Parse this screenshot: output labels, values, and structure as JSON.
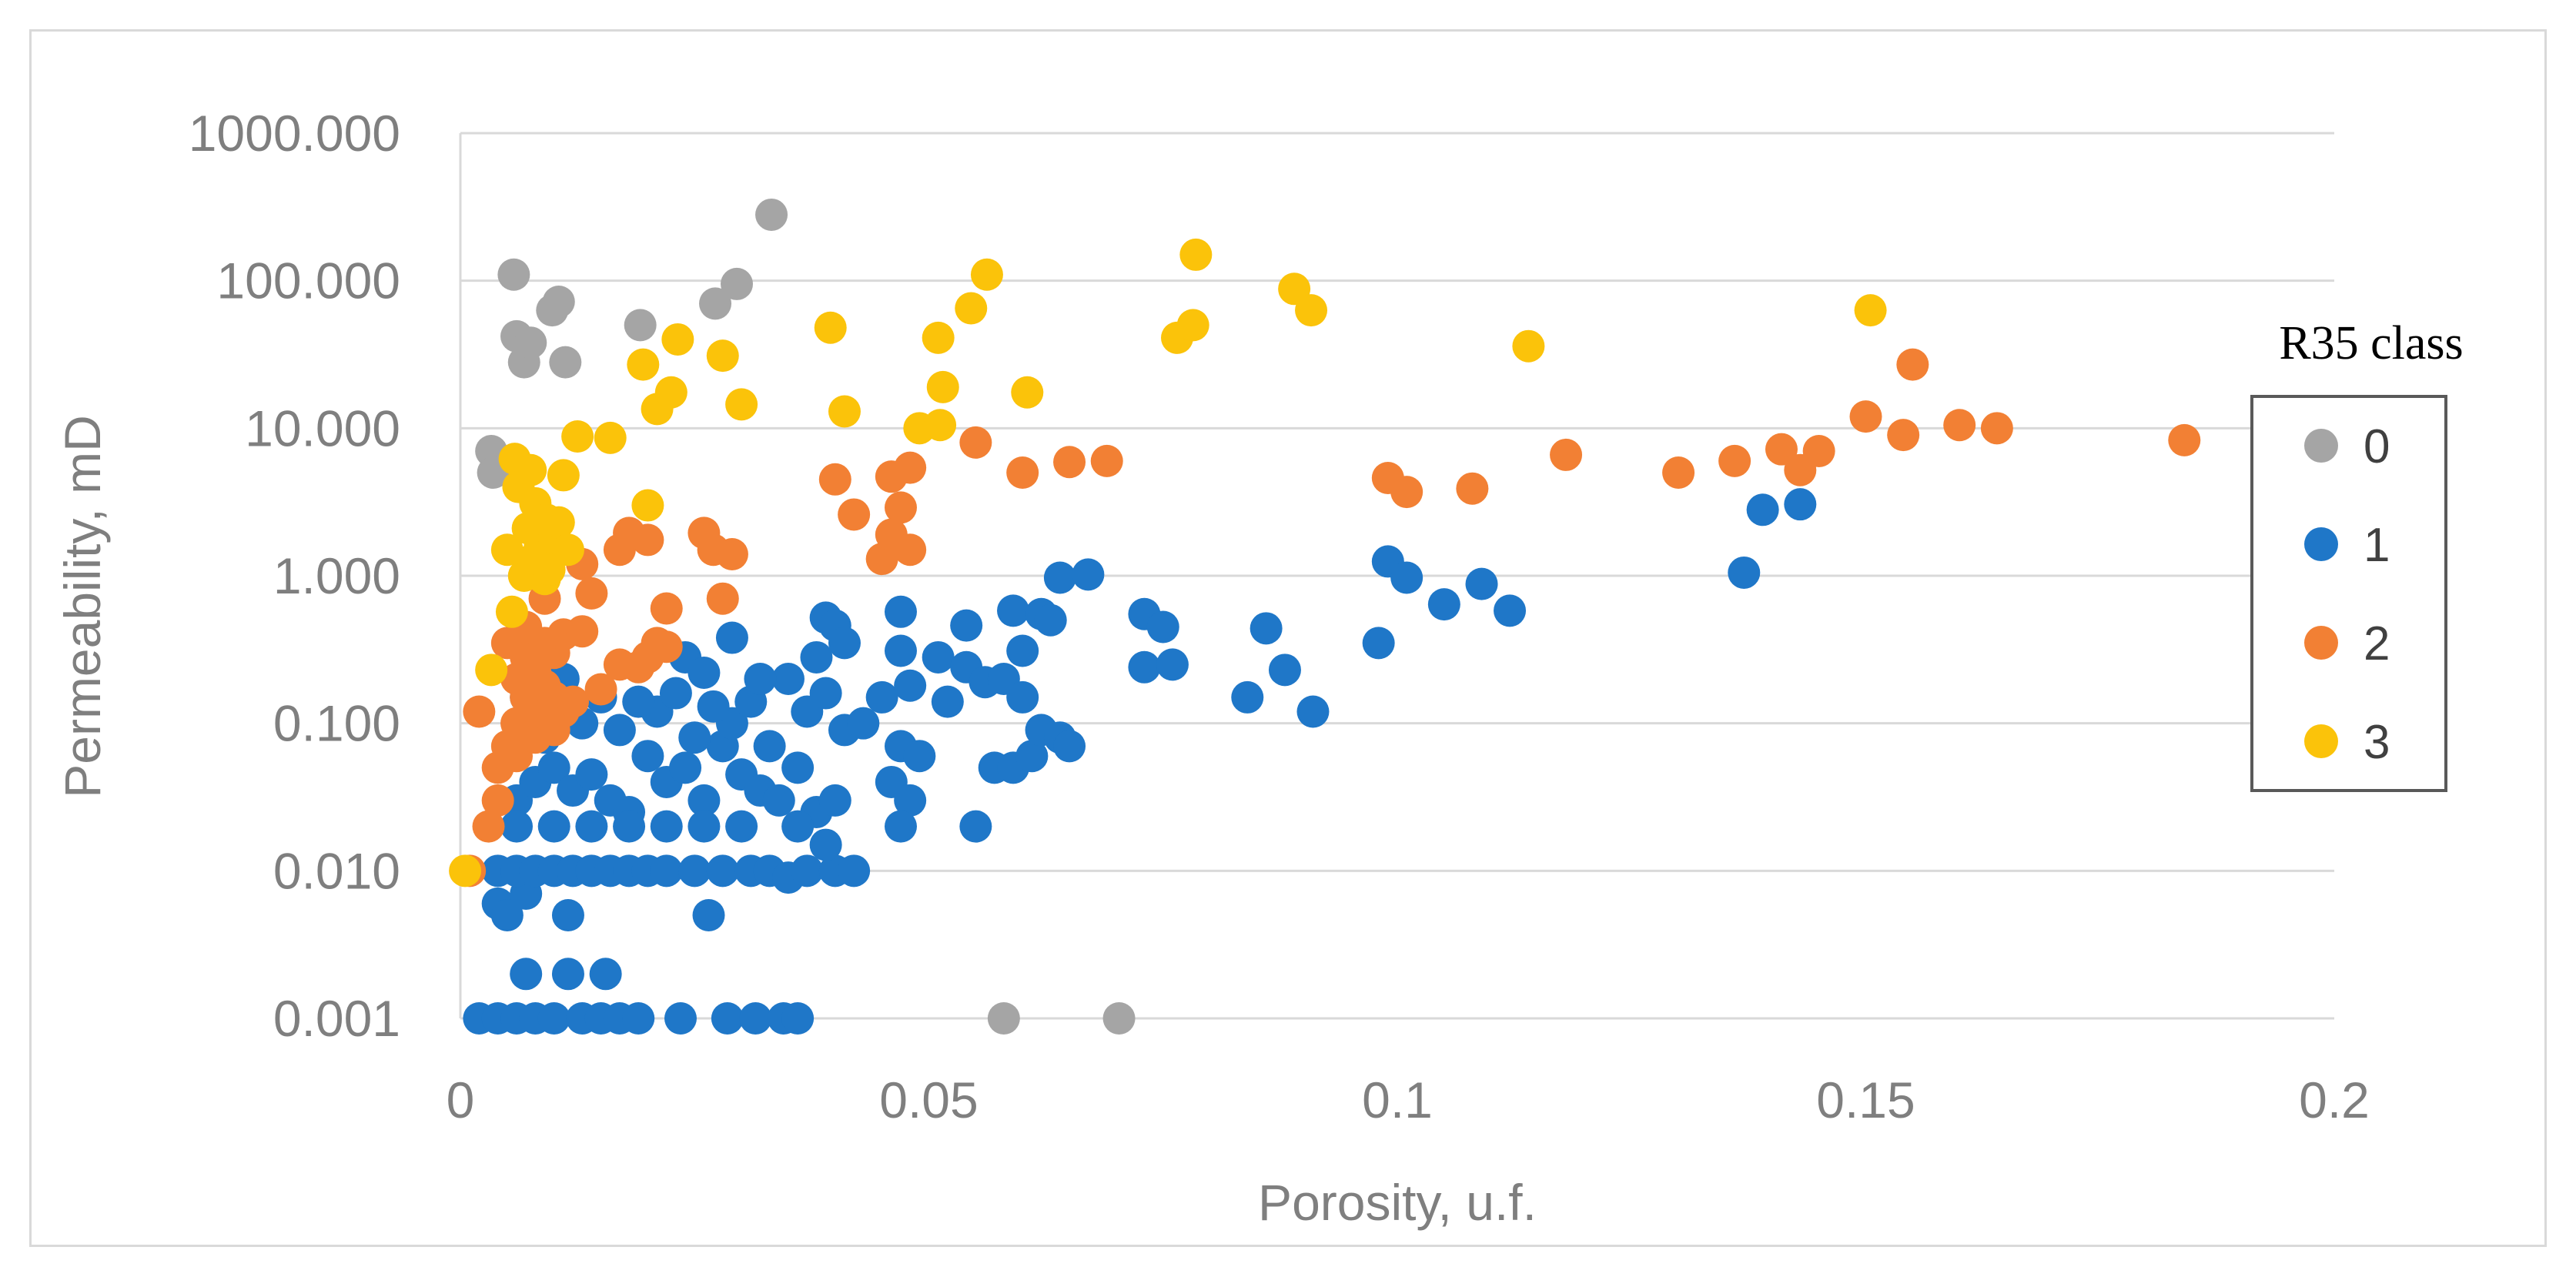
{
  "chart_data": {
    "type": "scatter",
    "title": "",
    "xlabel": "Porosity, u.f.",
    "ylabel": "Permeability, mD",
    "xlim": [
      0,
      0.2
    ],
    "ylim": [
      0.001,
      1000
    ],
    "yscale": "log",
    "x_ticks": [
      "0",
      "0.05",
      "0.1",
      "0.15",
      "0.2"
    ],
    "y_ticks": [
      "1000.000",
      "100.000",
      "10.000",
      "1.000",
      "0.100",
      "0.010",
      "0.001"
    ],
    "grid": "horizontal",
    "legend": {
      "title": "R35 class",
      "position": "right"
    },
    "series": [
      {
        "name": "0",
        "color": "#a5a5a5",
        "points": [
          [
            0.0033,
            7.0
          ],
          [
            0.0035,
            5.0
          ],
          [
            0.0057,
            110
          ],
          [
            0.006,
            42
          ],
          [
            0.0068,
            28
          ],
          [
            0.0075,
            38
          ],
          [
            0.0098,
            63
          ],
          [
            0.0105,
            72
          ],
          [
            0.0112,
            28
          ],
          [
            0.0192,
            50
          ],
          [
            0.0272,
            70
          ],
          [
            0.0295,
            95
          ],
          [
            0.0332,
            280
          ],
          [
            0.058,
            0.001
          ],
          [
            0.0703,
            0.001
          ]
        ]
      },
      {
        "name": "1",
        "color": "#1f77c8",
        "points": [
          [
            0.002,
            0.001
          ],
          [
            0.004,
            0.001
          ],
          [
            0.006,
            0.001
          ],
          [
            0.008,
            0.001
          ],
          [
            0.01,
            0.001
          ],
          [
            0.013,
            0.001
          ],
          [
            0.015,
            0.001
          ],
          [
            0.017,
            0.001
          ],
          [
            0.019,
            0.001
          ],
          [
            0.0235,
            0.001
          ],
          [
            0.0285,
            0.001
          ],
          [
            0.0315,
            0.001
          ],
          [
            0.0345,
            0.001
          ],
          [
            0.036,
            0.001
          ],
          [
            0.007,
            0.002
          ],
          [
            0.0115,
            0.002
          ],
          [
            0.0155,
            0.002
          ],
          [
            0.004,
            0.006
          ],
          [
            0.005,
            0.005
          ],
          [
            0.007,
            0.007
          ],
          [
            0.0115,
            0.005
          ],
          [
            0.0265,
            0.005
          ],
          [
            0.004,
            0.01
          ],
          [
            0.006,
            0.01
          ],
          [
            0.008,
            0.01
          ],
          [
            0.01,
            0.01
          ],
          [
            0.012,
            0.01
          ],
          [
            0.014,
            0.01
          ],
          [
            0.016,
            0.01
          ],
          [
            0.018,
            0.01
          ],
          [
            0.02,
            0.01
          ],
          [
            0.022,
            0.01
          ],
          [
            0.025,
            0.01
          ],
          [
            0.028,
            0.01
          ],
          [
            0.031,
            0.01
          ],
          [
            0.033,
            0.01
          ],
          [
            0.035,
            0.009
          ],
          [
            0.037,
            0.01
          ],
          [
            0.04,
            0.01
          ],
          [
            0.042,
            0.01
          ],
          [
            0.006,
            0.03
          ],
          [
            0.008,
            0.04
          ],
          [
            0.01,
            0.05
          ],
          [
            0.012,
            0.035
          ],
          [
            0.014,
            0.045
          ],
          [
            0.016,
            0.03
          ],
          [
            0.018,
            0.025
          ],
          [
            0.02,
            0.06
          ],
          [
            0.022,
            0.04
          ],
          [
            0.024,
            0.05
          ],
          [
            0.026,
            0.03
          ],
          [
            0.028,
            0.07
          ],
          [
            0.03,
            0.045
          ],
          [
            0.032,
            0.035
          ],
          [
            0.034,
            0.03
          ],
          [
            0.036,
            0.05
          ],
          [
            0.038,
            0.025
          ],
          [
            0.04,
            0.03
          ],
          [
            0.009,
            0.08
          ],
          [
            0.013,
            0.1
          ],
          [
            0.017,
            0.09
          ],
          [
            0.021,
            0.12
          ],
          [
            0.025,
            0.08
          ],
          [
            0.029,
            0.1
          ],
          [
            0.033,
            0.07
          ],
          [
            0.037,
            0.12
          ],
          [
            0.041,
            0.09
          ],
          [
            0.007,
            0.15
          ],
          [
            0.011,
            0.2
          ],
          [
            0.015,
            0.15
          ],
          [
            0.019,
            0.14
          ],
          [
            0.023,
            0.16
          ],
          [
            0.027,
            0.13
          ],
          [
            0.031,
            0.14
          ],
          [
            0.035,
            0.2
          ],
          [
            0.039,
            0.16
          ],
          [
            0.006,
            0.02
          ],
          [
            0.01,
            0.02
          ],
          [
            0.014,
            0.02
          ],
          [
            0.018,
            0.02
          ],
          [
            0.022,
            0.02
          ],
          [
            0.026,
            0.02
          ],
          [
            0.03,
            0.02
          ],
          [
            0.036,
            0.02
          ],
          [
            0.039,
            0.015
          ],
          [
            0.024,
            0.28
          ],
          [
            0.026,
            0.22
          ],
          [
            0.029,
            0.38
          ],
          [
            0.032,
            0.2
          ],
          [
            0.038,
            0.28
          ],
          [
            0.039,
            0.52
          ],
          [
            0.04,
            0.46
          ],
          [
            0.041,
            0.35
          ],
          [
            0.043,
            0.1
          ],
          [
            0.045,
            0.15
          ],
          [
            0.046,
            0.04
          ],
          [
            0.047,
            0.07
          ],
          [
            0.047,
            0.31
          ],
          [
            0.047,
            0.57
          ],
          [
            0.048,
            0.18
          ],
          [
            0.048,
            0.03
          ],
          [
            0.047,
            0.02
          ],
          [
            0.049,
            0.06
          ],
          [
            0.051,
            0.28
          ],
          [
            0.052,
            0.14
          ],
          [
            0.054,
            0.46
          ],
          [
            0.054,
            0.24
          ],
          [
            0.055,
            0.02
          ],
          [
            0.056,
            0.19
          ],
          [
            0.057,
            0.05
          ],
          [
            0.058,
            0.2
          ],
          [
            0.059,
            0.05
          ],
          [
            0.059,
            0.58
          ],
          [
            0.06,
            0.31
          ],
          [
            0.06,
            0.15
          ],
          [
            0.061,
            0.06
          ],
          [
            0.062,
            0.55
          ],
          [
            0.062,
            0.09
          ],
          [
            0.063,
            0.5
          ],
          [
            0.064,
            0.08
          ],
          [
            0.064,
            0.97
          ],
          [
            0.065,
            0.07
          ],
          [
            0.067,
            1.02
          ],
          [
            0.073,
            0.55
          ],
          [
            0.073,
            0.24
          ],
          [
            0.075,
            0.45
          ],
          [
            0.076,
            0.25
          ],
          [
            0.084,
            0.15
          ],
          [
            0.086,
            0.44
          ],
          [
            0.088,
            0.23
          ],
          [
            0.091,
            0.12
          ],
          [
            0.098,
            0.35
          ],
          [
            0.099,
            1.25
          ],
          [
            0.101,
            0.97
          ],
          [
            0.105,
            0.64
          ],
          [
            0.109,
            0.88
          ],
          [
            0.112,
            0.58
          ],
          [
            0.137,
            1.05
          ],
          [
            0.139,
            2.8
          ],
          [
            0.143,
            3.05
          ]
        ]
      },
      {
        "name": "2",
        "color": "#f28034",
        "points": [
          [
            0.001,
            0.01
          ],
          [
            0.002,
            0.12
          ],
          [
            0.003,
            0.02
          ],
          [
            0.004,
            0.03
          ],
          [
            0.004,
            0.05
          ],
          [
            0.005,
            0.07
          ],
          [
            0.005,
            0.35
          ],
          [
            0.006,
            0.1
          ],
          [
            0.006,
            0.2
          ],
          [
            0.006,
            0.06
          ],
          [
            0.007,
            0.15
          ],
          [
            0.007,
            0.28
          ],
          [
            0.007,
            0.45
          ],
          [
            0.008,
            0.08
          ],
          [
            0.008,
            0.12
          ],
          [
            0.008,
            0.22
          ],
          [
            0.009,
            0.18
          ],
          [
            0.009,
            0.35
          ],
          [
            0.009,
            0.7
          ],
          [
            0.01,
            0.09
          ],
          [
            0.01,
            0.15
          ],
          [
            0.01,
            0.3
          ],
          [
            0.011,
            0.12
          ],
          [
            0.011,
            0.4
          ],
          [
            0.012,
            0.14
          ],
          [
            0.013,
            1.2
          ],
          [
            0.013,
            0.42
          ],
          [
            0.014,
            0.76
          ],
          [
            0.015,
            0.17
          ],
          [
            0.017,
            1.5
          ],
          [
            0.017,
            0.25
          ],
          [
            0.018,
            1.95
          ],
          [
            0.019,
            0.24
          ],
          [
            0.02,
            0.28
          ],
          [
            0.02,
            1.75
          ],
          [
            0.021,
            0.35
          ],
          [
            0.022,
            0.6
          ],
          [
            0.022,
            0.33
          ],
          [
            0.026,
            1.95
          ],
          [
            0.027,
            1.5
          ],
          [
            0.028,
            0.7
          ],
          [
            0.029,
            1.4
          ],
          [
            0.04,
            4.5
          ],
          [
            0.042,
            2.6
          ],
          [
            0.045,
            1.3
          ],
          [
            0.046,
            4.7
          ],
          [
            0.046,
            1.9
          ],
          [
            0.047,
            2.9
          ],
          [
            0.048,
            5.4
          ],
          [
            0.048,
            1.5
          ],
          [
            0.055,
            8.0
          ],
          [
            0.06,
            5.0
          ],
          [
            0.065,
            5.9
          ],
          [
            0.069,
            6.0
          ],
          [
            0.099,
            4.6
          ],
          [
            0.101,
            3.7
          ],
          [
            0.108,
            3.9
          ],
          [
            0.118,
            6.6
          ],
          [
            0.13,
            5.0
          ],
          [
            0.136,
            6.0
          ],
          [
            0.141,
            7.2
          ],
          [
            0.143,
            5.2
          ],
          [
            0.145,
            7.0
          ],
          [
            0.15,
            12.0
          ],
          [
            0.154,
            9.0
          ],
          [
            0.155,
            27.0
          ],
          [
            0.16,
            10.5
          ],
          [
            0.164,
            10.0
          ],
          [
            0.184,
            8.3
          ]
        ]
      },
      {
        "name": "3",
        "color": "#fbc30a",
        "points": [
          [
            0.0005,
            0.01
          ],
          [
            0.0033,
            0.23
          ],
          [
            0.005,
            1.5
          ],
          [
            0.0055,
            0.57
          ],
          [
            0.0058,
            6.2
          ],
          [
            0.0062,
            4.0
          ],
          [
            0.0068,
            1.0
          ],
          [
            0.0072,
            2.1
          ],
          [
            0.0075,
            5.2
          ],
          [
            0.0078,
            1.3
          ],
          [
            0.008,
            3.1
          ],
          [
            0.0085,
            1.6
          ],
          [
            0.009,
            0.95
          ],
          [
            0.0092,
            2.4
          ],
          [
            0.0095,
            1.1
          ],
          [
            0.01,
            1.8
          ],
          [
            0.0105,
            2.3
          ],
          [
            0.011,
            4.8
          ],
          [
            0.0115,
            1.5
          ],
          [
            0.0125,
            8.8
          ],
          [
            0.016,
            8.6
          ],
          [
            0.0195,
            27.0
          ],
          [
            0.02,
            3.0
          ],
          [
            0.021,
            13.5
          ],
          [
            0.0225,
            17.5
          ],
          [
            0.0232,
            40.0
          ],
          [
            0.028,
            31.0
          ],
          [
            0.03,
            14.5
          ],
          [
            0.0395,
            48.0
          ],
          [
            0.041,
            13.0
          ],
          [
            0.049,
            10.0
          ],
          [
            0.051,
            41.0
          ],
          [
            0.0512,
            10.5
          ],
          [
            0.0515,
            19.0
          ],
          [
            0.0545,
            65.0
          ],
          [
            0.0562,
            110.0
          ],
          [
            0.0605,
            17.5
          ],
          [
            0.0765,
            41.0
          ],
          [
            0.0782,
            50.0
          ],
          [
            0.0785,
            150.0
          ],
          [
            0.089,
            88.0
          ],
          [
            0.0908,
            63.0
          ],
          [
            0.114,
            36.0
          ],
          [
            0.1505,
            63.0
          ]
        ]
      }
    ]
  }
}
